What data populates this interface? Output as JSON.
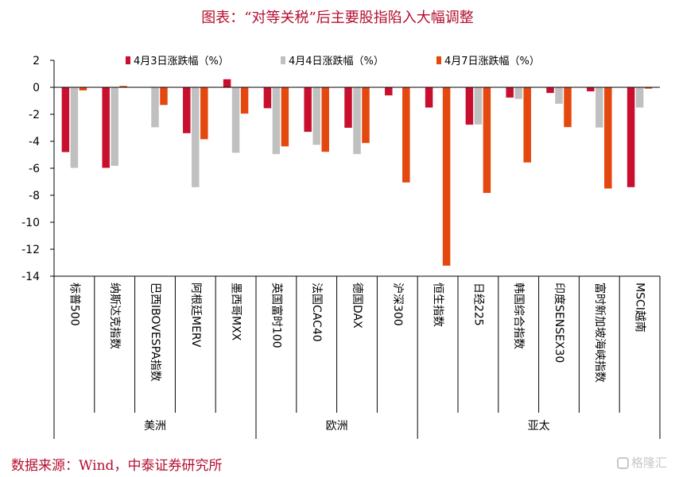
{
  "chart_data": {
    "type": "bar",
    "title": "图表：“对等关税”后主要股指陷入大幅调整",
    "categories": [
      "标普500",
      "纳斯达克指数",
      "巴西IBOVESPA指数",
      "阿根廷MERV",
      "墨西哥MXX",
      "英国富时100",
      "法国CAC40",
      "德国DAX",
      "沪深300",
      "恒生指数",
      "日经225",
      "韩国综合指数",
      "印度SENSEX30",
      "富时新加坡海峡指数",
      "MSCI越南"
    ],
    "groups": [
      {
        "name": "美洲",
        "start": 0,
        "end": 4
      },
      {
        "name": "欧洲",
        "start": 5,
        "end": 8
      },
      {
        "name": "亚太",
        "start": 9,
        "end": 14
      }
    ],
    "series": [
      {
        "name": "4月3日涨跌幅（%）",
        "color": "#c8102e",
        "values": [
          -4.8,
          -5.97,
          null,
          -3.4,
          0.6,
          -1.55,
          -3.3,
          -3.0,
          -0.6,
          -1.5,
          -2.77,
          -0.76,
          -0.42,
          -0.3,
          -7.4
        ]
      },
      {
        "name": "4月4日涨跌幅（%）",
        "color": "#c0c0c0",
        "values": [
          -5.97,
          -5.82,
          -2.96,
          -7.4,
          -4.85,
          -4.95,
          -4.26,
          -4.95,
          null,
          null,
          -2.75,
          -0.86,
          -1.22,
          -2.98,
          -1.5
        ]
      },
      {
        "name": "4月7日涨跌幅（%）",
        "color": "#e4480f",
        "values": [
          -0.23,
          0.1,
          -1.31,
          -3.85,
          -1.95,
          -4.38,
          -4.78,
          -4.13,
          -7.05,
          -13.22,
          -7.83,
          -5.57,
          -2.95,
          -7.5,
          -0.1
        ]
      }
    ],
    "ylim": [
      -14,
      2
    ],
    "yticks": [
      2,
      0,
      -2,
      -4,
      -6,
      -8,
      -10,
      -12,
      -14
    ],
    "xlabel": "",
    "ylabel": "",
    "legend": "top"
  },
  "source": "数据来源：Wind，中泰证券研究所",
  "watermark": "格隆汇"
}
